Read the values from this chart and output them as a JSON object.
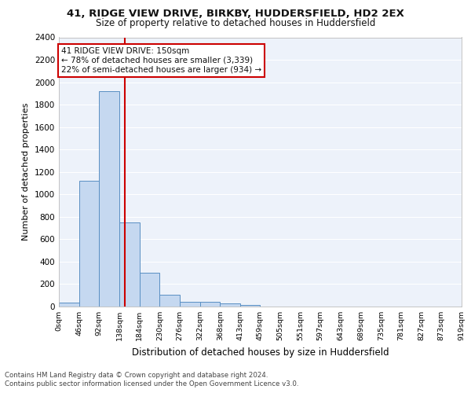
{
  "title_line1": "41, RIDGE VIEW DRIVE, BIRKBY, HUDDERSFIELD, HD2 2EX",
  "title_line2": "Size of property relative to detached houses in Huddersfield",
  "xlabel": "Distribution of detached houses by size in Huddersfield",
  "ylabel": "Number of detached properties",
  "bin_edges": [
    0,
    46,
    92,
    138,
    184,
    230,
    276,
    322,
    368,
    413,
    459,
    505,
    551,
    597,
    643,
    689,
    735,
    781,
    827,
    873,
    919
  ],
  "bar_heights": [
    35,
    1120,
    1920,
    750,
    300,
    105,
    45,
    40,
    25,
    15,
    0,
    0,
    0,
    0,
    0,
    0,
    0,
    0,
    0,
    0
  ],
  "bar_color": "#c5d8f0",
  "bar_edge_color": "#5a8fc3",
  "ylim": [
    0,
    2400
  ],
  "yticks": [
    0,
    200,
    400,
    600,
    800,
    1000,
    1200,
    1400,
    1600,
    1800,
    2000,
    2200,
    2400
  ],
  "property_size": 150,
  "vline_color": "#cc0000",
  "annotation_text": "41 RIDGE VIEW DRIVE: 150sqm\n← 78% of detached houses are smaller (3,339)\n22% of semi-detached houses are larger (934) →",
  "annotation_box_color": "#ffffff",
  "annotation_box_edge": "#cc0000",
  "footer_line1": "Contains HM Land Registry data © Crown copyright and database right 2024.",
  "footer_line2": "Contains public sector information licensed under the Open Government Licence v3.0.",
  "background_color": "#edf2fa",
  "grid_color": "#ffffff",
  "tick_labels": [
    "0sqm",
    "46sqm",
    "92sqm",
    "138sqm",
    "184sqm",
    "230sqm",
    "276sqm",
    "322sqm",
    "368sqm",
    "413sqm",
    "459sqm",
    "505sqm",
    "551sqm",
    "597sqm",
    "643sqm",
    "689sqm",
    "735sqm",
    "781sqm",
    "827sqm",
    "873sqm",
    "919sqm"
  ]
}
